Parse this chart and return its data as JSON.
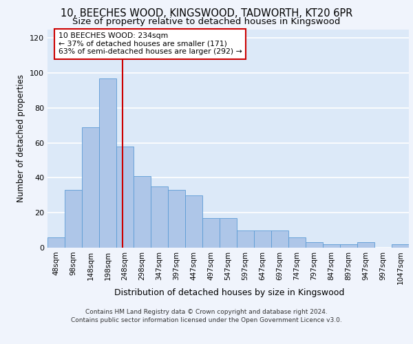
{
  "title": "10, BEECHES WOOD, KINGSWOOD, TADWORTH, KT20 6PR",
  "subtitle": "Size of property relative to detached houses in Kingswood",
  "xlabel": "Distribution of detached houses by size in Kingswood",
  "ylabel": "Number of detached properties",
  "bar_values": [
    6,
    33,
    69,
    97,
    58,
    41,
    35,
    33,
    30,
    17,
    17,
    10,
    10,
    10,
    6,
    3,
    2,
    2,
    3,
    0,
    2
  ],
  "bar_labels": [
    "48sqm",
    "98sqm",
    "148sqm",
    "198sqm",
    "248sqm",
    "298sqm",
    "347sqm",
    "397sqm",
    "447sqm",
    "497sqm",
    "547sqm",
    "597sqm",
    "647sqm",
    "697sqm",
    "747sqm",
    "797sqm",
    "847sqm",
    "897sqm",
    "947sqm",
    "997sqm",
    "1047sqm"
  ],
  "bar_color": "#aec6e8",
  "bar_edge_color": "#5b9bd5",
  "background_color": "#dce9f8",
  "fig_color": "#f0f4fc",
  "grid_color": "#ffffff",
  "vline_x": 3.85,
  "vline_color": "#cc0000",
  "annotation_text": "10 BEECHES WOOD: 234sqm\n← 37% of detached houses are smaller (171)\n63% of semi-detached houses are larger (292) →",
  "annotation_box_color": "#ffffff",
  "annotation_box_edge": "#cc0000",
  "ylim": [
    0,
    125
  ],
  "yticks": [
    0,
    20,
    40,
    60,
    80,
    100,
    120
  ],
  "footer_line1": "Contains HM Land Registry data © Crown copyright and database right 2024.",
  "footer_line2": "Contains public sector information licensed under the Open Government Licence v3.0.",
  "title_fontsize": 10.5,
  "subtitle_fontsize": 9.5
}
